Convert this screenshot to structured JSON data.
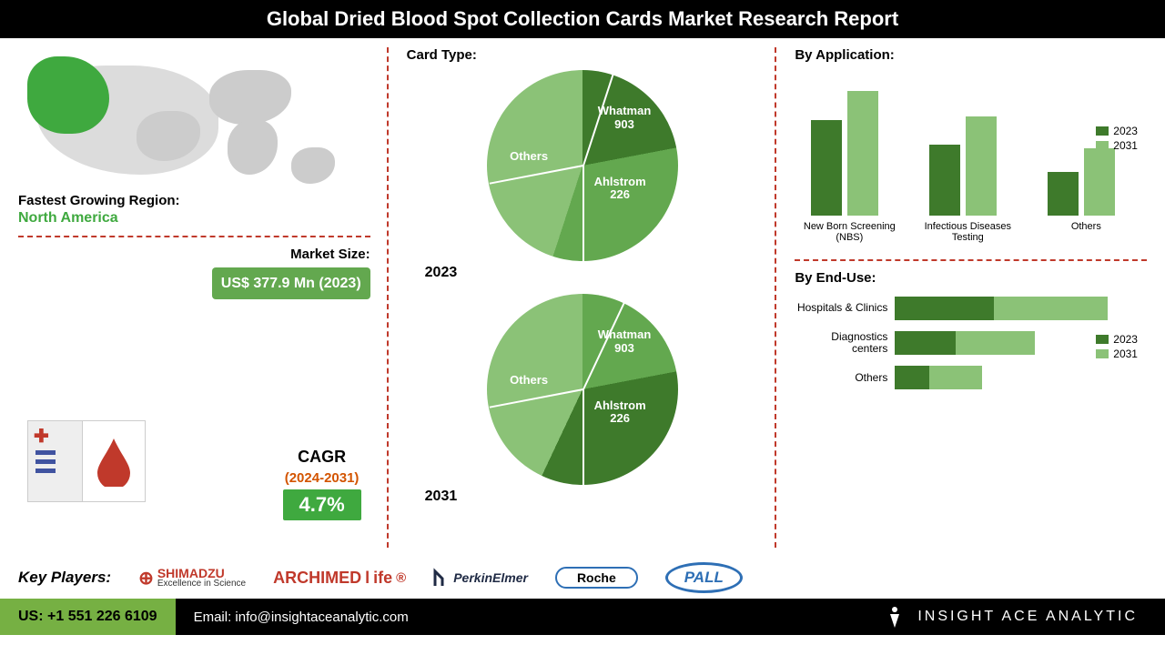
{
  "title": "Global Dried Blood Spot Collection Cards Market Research Report",
  "colors": {
    "dark_green": "#3e7a2b",
    "mid_green": "#63a84f",
    "light_green": "#8bc277",
    "accent_red": "#c0392b",
    "badge_green": "#63a84f",
    "cagr_orange": "#d35400"
  },
  "left": {
    "region_label": "Fastest Growing Region:",
    "region_name": "North America",
    "market_size_label": "Market Size:",
    "market_size_value": "US$ 377.9 Mn (2023)",
    "cagr_label": "CAGR",
    "cagr_years": "(2024-2031)",
    "cagr_value": "4.7%"
  },
  "card_type": {
    "title": "Card Type:",
    "segments": [
      "Whatman 903",
      "Ahlstrom 226",
      "Others"
    ],
    "series": [
      {
        "year": "2023",
        "values_pct": [
          22,
          33,
          45
        ],
        "colors": [
          "#3e7a2b",
          "#63a84f",
          "#8bc277"
        ]
      },
      {
        "year": "2031",
        "values_pct": [
          22,
          35,
          43
        ],
        "colors": [
          "#63a84f",
          "#3e7a2b",
          "#8bc277"
        ]
      }
    ]
  },
  "application": {
    "title": "By Application:",
    "categories": [
      "New Born Screening (NBS)",
      "Infectious Diseases Testing",
      "Others"
    ],
    "series": [
      {
        "name": "2023",
        "color": "#3e7a2b",
        "values": [
          92,
          68,
          42
        ]
      },
      {
        "name": "2031",
        "color": "#8bc277",
        "values": [
          120,
          95,
          65
        ]
      }
    ],
    "ylim": [
      0,
      140
    ]
  },
  "end_use": {
    "title": "By End-Use:",
    "categories": [
      "Hospitals & Clinics",
      "Diagnostics centers",
      "Others"
    ],
    "series": [
      {
        "name": "2023",
        "color": "#3e7a2b",
        "values": [
          130,
          80,
          45
        ]
      },
      {
        "name": "2031",
        "color": "#8bc277",
        "values": [
          150,
          105,
          70
        ]
      }
    ],
    "xlim": [
      0,
      300
    ]
  },
  "key_players": {
    "label": "Key Players:",
    "items": [
      "SHIMADZU",
      "ARCHIMEDlife®",
      "PerkinElmer",
      "Roche",
      "PALL"
    ]
  },
  "footer": {
    "phone": "US: +1 551 226 6109",
    "email": "Email: info@insightaceanalytic.com",
    "brand": "INSIGHT ACE ANALYTIC"
  }
}
